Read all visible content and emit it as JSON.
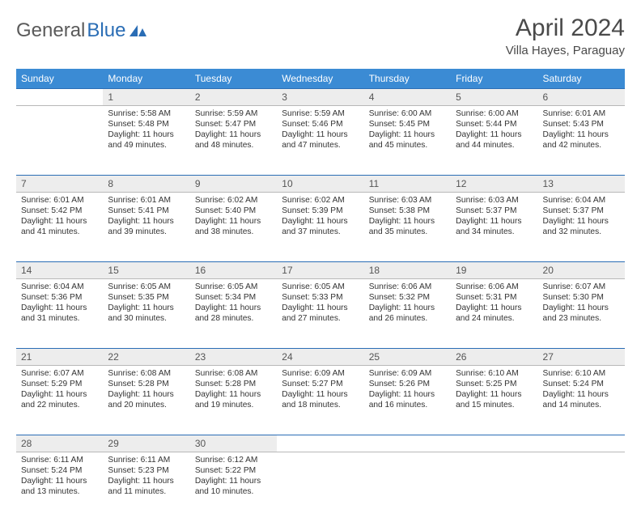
{
  "logo": {
    "text1": "General",
    "text2": "Blue"
  },
  "title": "April 2024",
  "location": "Villa Hayes, Paraguay",
  "colors": {
    "header_bg": "#3b8bd4",
    "header_text": "#ffffff",
    "daynum_bg": "#ededed",
    "rule": "#2a6db5",
    "body_text": "#333333",
    "logo_gray": "#5a5a5a",
    "logo_blue": "#2a6db5"
  },
  "weekdays": [
    "Sunday",
    "Monday",
    "Tuesday",
    "Wednesday",
    "Thursday",
    "Friday",
    "Saturday"
  ],
  "weeks": [
    [
      null,
      {
        "n": "1",
        "sr": "5:58 AM",
        "ss": "5:48 PM",
        "dl": "11 hours and 49 minutes."
      },
      {
        "n": "2",
        "sr": "5:59 AM",
        "ss": "5:47 PM",
        "dl": "11 hours and 48 minutes."
      },
      {
        "n": "3",
        "sr": "5:59 AM",
        "ss": "5:46 PM",
        "dl": "11 hours and 47 minutes."
      },
      {
        "n": "4",
        "sr": "6:00 AM",
        "ss": "5:45 PM",
        "dl": "11 hours and 45 minutes."
      },
      {
        "n": "5",
        "sr": "6:00 AM",
        "ss": "5:44 PM",
        "dl": "11 hours and 44 minutes."
      },
      {
        "n": "6",
        "sr": "6:01 AM",
        "ss": "5:43 PM",
        "dl": "11 hours and 42 minutes."
      }
    ],
    [
      {
        "n": "7",
        "sr": "6:01 AM",
        "ss": "5:42 PM",
        "dl": "11 hours and 41 minutes."
      },
      {
        "n": "8",
        "sr": "6:01 AM",
        "ss": "5:41 PM",
        "dl": "11 hours and 39 minutes."
      },
      {
        "n": "9",
        "sr": "6:02 AM",
        "ss": "5:40 PM",
        "dl": "11 hours and 38 minutes."
      },
      {
        "n": "10",
        "sr": "6:02 AM",
        "ss": "5:39 PM",
        "dl": "11 hours and 37 minutes."
      },
      {
        "n": "11",
        "sr": "6:03 AM",
        "ss": "5:38 PM",
        "dl": "11 hours and 35 minutes."
      },
      {
        "n": "12",
        "sr": "6:03 AM",
        "ss": "5:37 PM",
        "dl": "11 hours and 34 minutes."
      },
      {
        "n": "13",
        "sr": "6:04 AM",
        "ss": "5:37 PM",
        "dl": "11 hours and 32 minutes."
      }
    ],
    [
      {
        "n": "14",
        "sr": "6:04 AM",
        "ss": "5:36 PM",
        "dl": "11 hours and 31 minutes."
      },
      {
        "n": "15",
        "sr": "6:05 AM",
        "ss": "5:35 PM",
        "dl": "11 hours and 30 minutes."
      },
      {
        "n": "16",
        "sr": "6:05 AM",
        "ss": "5:34 PM",
        "dl": "11 hours and 28 minutes."
      },
      {
        "n": "17",
        "sr": "6:05 AM",
        "ss": "5:33 PM",
        "dl": "11 hours and 27 minutes."
      },
      {
        "n": "18",
        "sr": "6:06 AM",
        "ss": "5:32 PM",
        "dl": "11 hours and 26 minutes."
      },
      {
        "n": "19",
        "sr": "6:06 AM",
        "ss": "5:31 PM",
        "dl": "11 hours and 24 minutes."
      },
      {
        "n": "20",
        "sr": "6:07 AM",
        "ss": "5:30 PM",
        "dl": "11 hours and 23 minutes."
      }
    ],
    [
      {
        "n": "21",
        "sr": "6:07 AM",
        "ss": "5:29 PM",
        "dl": "11 hours and 22 minutes."
      },
      {
        "n": "22",
        "sr": "6:08 AM",
        "ss": "5:28 PM",
        "dl": "11 hours and 20 minutes."
      },
      {
        "n": "23",
        "sr": "6:08 AM",
        "ss": "5:28 PM",
        "dl": "11 hours and 19 minutes."
      },
      {
        "n": "24",
        "sr": "6:09 AM",
        "ss": "5:27 PM",
        "dl": "11 hours and 18 minutes."
      },
      {
        "n": "25",
        "sr": "6:09 AM",
        "ss": "5:26 PM",
        "dl": "11 hours and 16 minutes."
      },
      {
        "n": "26",
        "sr": "6:10 AM",
        "ss": "5:25 PM",
        "dl": "11 hours and 15 minutes."
      },
      {
        "n": "27",
        "sr": "6:10 AM",
        "ss": "5:24 PM",
        "dl": "11 hours and 14 minutes."
      }
    ],
    [
      {
        "n": "28",
        "sr": "6:11 AM",
        "ss": "5:24 PM",
        "dl": "11 hours and 13 minutes."
      },
      {
        "n": "29",
        "sr": "6:11 AM",
        "ss": "5:23 PM",
        "dl": "11 hours and 11 minutes."
      },
      {
        "n": "30",
        "sr": "6:12 AM",
        "ss": "5:22 PM",
        "dl": "11 hours and 10 minutes."
      },
      null,
      null,
      null,
      null
    ]
  ],
  "labels": {
    "sunrise": "Sunrise:",
    "sunset": "Sunset:",
    "daylight": "Daylight:"
  }
}
